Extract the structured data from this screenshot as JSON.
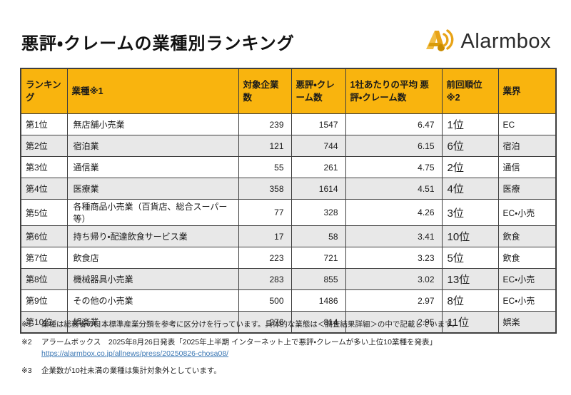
{
  "page": {
    "title": "悪評・クレームの業種別ランキング"
  },
  "logo": {
    "brand": "Alarmbox",
    "icon": "alarmbox-sound-wave-icon",
    "gold": "#E8A317",
    "gold_dark": "#C98B00"
  },
  "colors": {
    "header_bg": "#F9B40E",
    "alt_row_bg": "#E8E8E8",
    "border": "#3F3F3F",
    "link": "#3C78B4"
  },
  "table": {
    "headers": [
      "ランキング",
      "業種※1",
      "対象企業数",
      "悪評・クレーム数",
      "1社あたりの平均 悪評・クレーム数",
      "前回順位 ※2",
      "業界"
    ],
    "rows": [
      {
        "rank": "第1位",
        "industry": "無店舗小売業",
        "companies": "239",
        "complaints": "1547",
        "avg": "6.47",
        "prev": "1位",
        "sector": "EC"
      },
      {
        "rank": "第2位",
        "industry": "宿泊業",
        "companies": "121",
        "complaints": "744",
        "avg": "6.15",
        "prev": "6位",
        "sector": "宿泊"
      },
      {
        "rank": "第3位",
        "industry": "通信業",
        "companies": "55",
        "complaints": "261",
        "avg": "4.75",
        "prev": "2位",
        "sector": "通信"
      },
      {
        "rank": "第4位",
        "industry": "医療業",
        "companies": "358",
        "complaints": "1614",
        "avg": "4.51",
        "prev": "4位",
        "sector": "医療"
      },
      {
        "rank": "第5位",
        "industry": "各種商品小売業（百貨店、総合スーパー等）",
        "companies": "77",
        "complaints": "328",
        "avg": "4.26",
        "prev": "3位",
        "sector": "EC・小売"
      },
      {
        "rank": "第6位",
        "industry": "持ち帰り・配達飲食サービス業",
        "companies": "17",
        "complaints": "58",
        "avg": "3.41",
        "prev": "10位",
        "sector": "飲食"
      },
      {
        "rank": "第7位",
        "industry": "飲食店",
        "companies": "223",
        "complaints": "721",
        "avg": "3.23",
        "prev": "5位",
        "sector": "飲食"
      },
      {
        "rank": "第8位",
        "industry": "機械器具小売業",
        "companies": "283",
        "complaints": "855",
        "avg": "3.02",
        "prev": "13位",
        "sector": "EC・小売"
      },
      {
        "rank": "第9位",
        "industry": "その他の小売業",
        "companies": "500",
        "complaints": "1486",
        "avg": "2.97",
        "prev": "8位",
        "sector": "EC・小売"
      },
      {
        "rank": "第10位",
        "industry": "娯楽業",
        "companies": "276",
        "complaints": "814",
        "avg": "2.95",
        "prev": "11位",
        "sector": "娯楽"
      }
    ]
  },
  "footnotes": [
    {
      "marker": "※1",
      "text": "業種は総務省の日本標準産業分類を参考に区分けを行っています。具体的な業態は＜調査結果詳細＞の中で記載しています。"
    },
    {
      "marker": "※2",
      "text": "アラームボックス　2025年8月26日発表「2025年上半期 インターネット上で悪評・クレームが多い上位10業種を発表」",
      "link": "https://alarmbox.co.jp/allnews/press/20250826-chosa08/"
    },
    {
      "marker": "※3",
      "text": "企業数が10社未満の業種は集計対象外としています。"
    }
  ]
}
